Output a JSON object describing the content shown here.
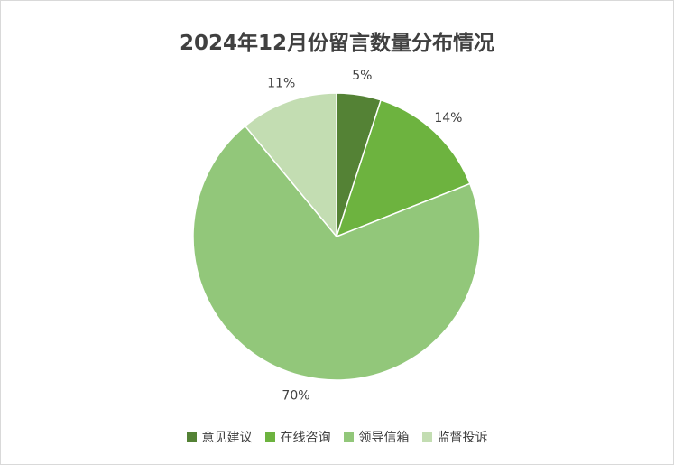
{
  "chart_data": {
    "type": "pie",
    "title": "2024年12月份留言数量分布情况",
    "categories": [
      "意见建议",
      "在线咨询",
      "领导信箱",
      "监督投诉"
    ],
    "values": [
      5,
      14,
      70,
      11
    ],
    "labels": [
      "5%",
      "14%",
      "70%",
      "11%"
    ],
    "colors": [
      "#548235",
      "#6db33f",
      "#92c77a",
      "#c3ddb2"
    ],
    "legend_position": "bottom"
  }
}
